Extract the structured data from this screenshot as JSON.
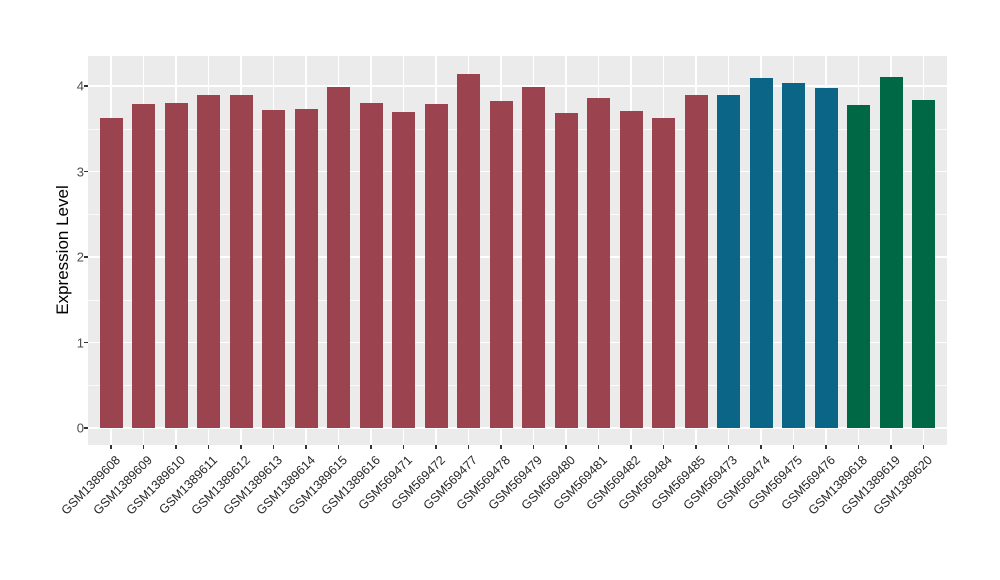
{
  "chart_data": {
    "type": "bar",
    "title": "",
    "xlabel": "",
    "ylabel": "Expression Level",
    "ylim": [
      -0.2,
      4.35
    ],
    "yticks": [
      0,
      1,
      2,
      3,
      4
    ],
    "yticks_minor": [
      0.5,
      1.5,
      2.5,
      3.5
    ],
    "grid": true,
    "legend_position": "none",
    "panel_background": "#EBEBEB",
    "grid_color": "#FFFFFF",
    "tick_color": "#333333",
    "axis_text_color": "#4D4D4D",
    "group_colors": {
      "group1": "#9B4450",
      "group2": "#0B6586",
      "group3": "#006845"
    },
    "categories": [
      "GSM1389608",
      "GSM1389609",
      "GSM1389610",
      "GSM1389611",
      "GSM1389612",
      "GSM1389613",
      "GSM1389614",
      "GSM1389615",
      "GSM1389616",
      "GSM569471",
      "GSM569472",
      "GSM569477",
      "GSM569478",
      "GSM569479",
      "GSM569480",
      "GSM569481",
      "GSM569482",
      "GSM569484",
      "GSM569485",
      "GSM569473",
      "GSM569474",
      "GSM569475",
      "GSM569476",
      "GSM1389618",
      "GSM1389619",
      "GSM1389620"
    ],
    "bars": [
      {
        "label": "GSM1389608",
        "value": 3.62,
        "group": "group1"
      },
      {
        "label": "GSM1389609",
        "value": 3.79,
        "group": "group1"
      },
      {
        "label": "GSM1389610",
        "value": 3.8,
        "group": "group1"
      },
      {
        "label": "GSM1389611",
        "value": 3.89,
        "group": "group1"
      },
      {
        "label": "GSM1389612",
        "value": 3.9,
        "group": "group1"
      },
      {
        "label": "GSM1389613",
        "value": 3.72,
        "group": "group1"
      },
      {
        "label": "GSM1389614",
        "value": 3.73,
        "group": "group1"
      },
      {
        "label": "GSM1389615",
        "value": 3.99,
        "group": "group1"
      },
      {
        "label": "GSM1389616",
        "value": 3.8,
        "group": "group1"
      },
      {
        "label": "GSM569471",
        "value": 3.7,
        "group": "group1"
      },
      {
        "label": "GSM569472",
        "value": 3.79,
        "group": "group1"
      },
      {
        "label": "GSM569477",
        "value": 4.14,
        "group": "group1"
      },
      {
        "label": "GSM569478",
        "value": 3.82,
        "group": "group1"
      },
      {
        "label": "GSM569479",
        "value": 3.99,
        "group": "group1"
      },
      {
        "label": "GSM569480",
        "value": 3.69,
        "group": "group1"
      },
      {
        "label": "GSM569481",
        "value": 3.86,
        "group": "group1"
      },
      {
        "label": "GSM569482",
        "value": 3.71,
        "group": "group1"
      },
      {
        "label": "GSM569484",
        "value": 3.62,
        "group": "group1"
      },
      {
        "label": "GSM569485",
        "value": 3.9,
        "group": "group1"
      },
      {
        "label": "GSM569473",
        "value": 3.9,
        "group": "group2"
      },
      {
        "label": "GSM569474",
        "value": 4.09,
        "group": "group2"
      },
      {
        "label": "GSM569475",
        "value": 4.03,
        "group": "group2"
      },
      {
        "label": "GSM569476",
        "value": 3.98,
        "group": "group2"
      },
      {
        "label": "GSM1389618",
        "value": 3.78,
        "group": "group3"
      },
      {
        "label": "GSM1389619",
        "value": 4.11,
        "group": "group3"
      },
      {
        "label": "GSM1389620",
        "value": 3.84,
        "group": "group3"
      }
    ]
  }
}
